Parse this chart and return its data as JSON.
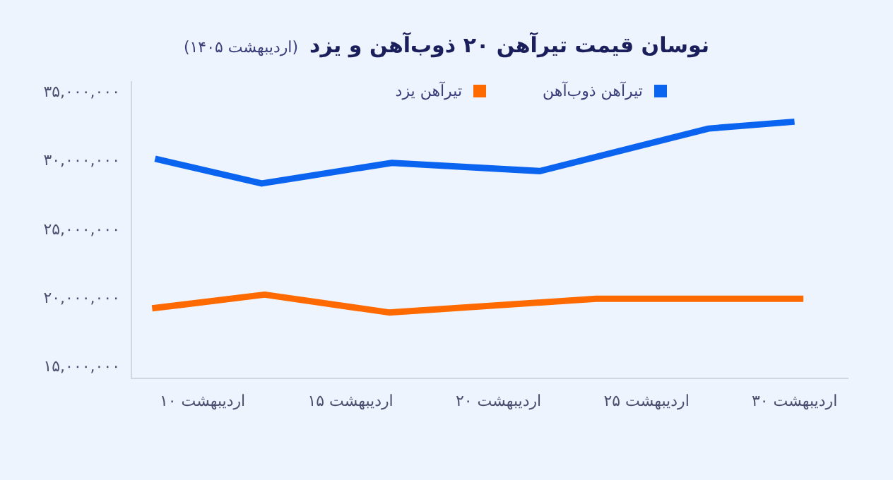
{
  "chart_data": {
    "type": "line",
    "title": "نوسان قیمت تیرآهن ۲۰ ذوب‌آهن و یزد",
    "subtitle": "(اردیبهشت ۱۴۰۵)",
    "xlim": [
      7.6,
      31.8
    ],
    "xticks": [
      {
        "value": 10,
        "label": "۱۰ اردیبهشت"
      },
      {
        "value": 15,
        "label": "۱۵ اردیبهشت"
      },
      {
        "value": 20,
        "label": "۲۰ اردیبهشت"
      },
      {
        "value": 25,
        "label": "۲۵ اردیبهشت"
      },
      {
        "value": 30,
        "label": "۳۰ اردیبهشت"
      }
    ],
    "ylim": [
      14200000,
      35800000
    ],
    "yticks": [
      {
        "value": 15000000,
        "label": "۱۵,۰۰۰,۰۰۰"
      },
      {
        "value": 20000000,
        "label": "۲۰,۰۰۰,۰۰۰"
      },
      {
        "value": 25000000,
        "label": "۲۵,۰۰۰,۰۰۰"
      },
      {
        "value": 30000000,
        "label": "۳۰,۰۰۰,۰۰۰"
      },
      {
        "value": 35000000,
        "label": "۳۵,۰۰۰,۰۰۰"
      }
    ],
    "grid": false,
    "legend": "top",
    "marker": "none",
    "line_style": "solid",
    "series": [
      {
        "name": "تیرآهن ذوب‌آهن",
        "color": "#0a64f0",
        "x": [
          8.4,
          12,
          16.4,
          21.4,
          27.1,
          30
        ],
        "values": [
          30200000,
          28400000,
          29900000,
          29300000,
          32400000,
          32900000
        ]
      },
      {
        "name": "تیرآهن یزد",
        "color": "#ff6a00",
        "x": [
          8.3,
          12.1,
          16.3,
          23.3,
          30.3
        ],
        "values": [
          19300000,
          20300000,
          19000000,
          20000000,
          20000000
        ]
      }
    ]
  }
}
